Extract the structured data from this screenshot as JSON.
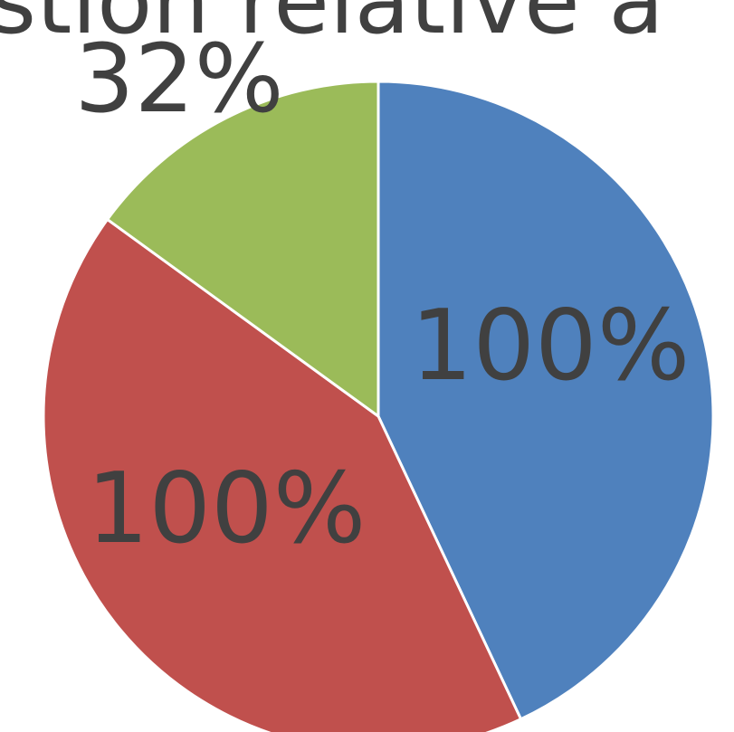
{
  "chart_data": {
    "type": "pie",
    "title": "stion relative a",
    "start_angle_deg": 0,
    "direction": "clockwise",
    "slices": [
      {
        "value": 43,
        "color": "#4F81BD",
        "label": "100%"
      },
      {
        "value": 42,
        "color": "#C0504D",
        "label": "100%"
      },
      {
        "value": 15,
        "color": "#9BBB59",
        "label": "32%"
      }
    ]
  }
}
